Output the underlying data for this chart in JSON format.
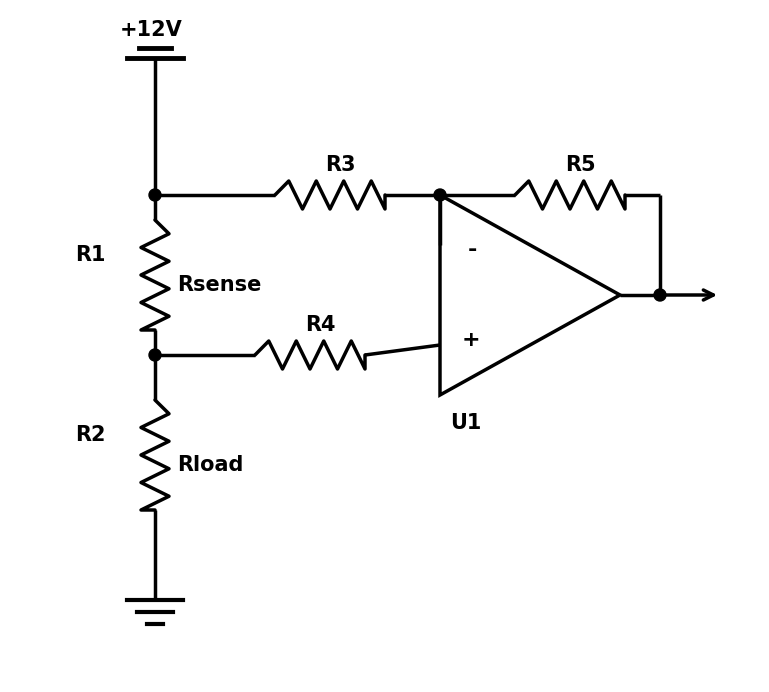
{
  "bg_color": "#ffffff",
  "line_color": "#000000",
  "line_width": 2.5,
  "labels": {
    "vcc": "+12V",
    "R1": "R1",
    "R2": "R2",
    "R3": "R3",
    "R4": "R4",
    "R5": "R5",
    "Rsense": "Rsense",
    "Rload": "Rload",
    "U1": "U1",
    "minus": "-",
    "plus": "+"
  },
  "figsize": [
    7.69,
    6.92
  ],
  "dpi": 100
}
